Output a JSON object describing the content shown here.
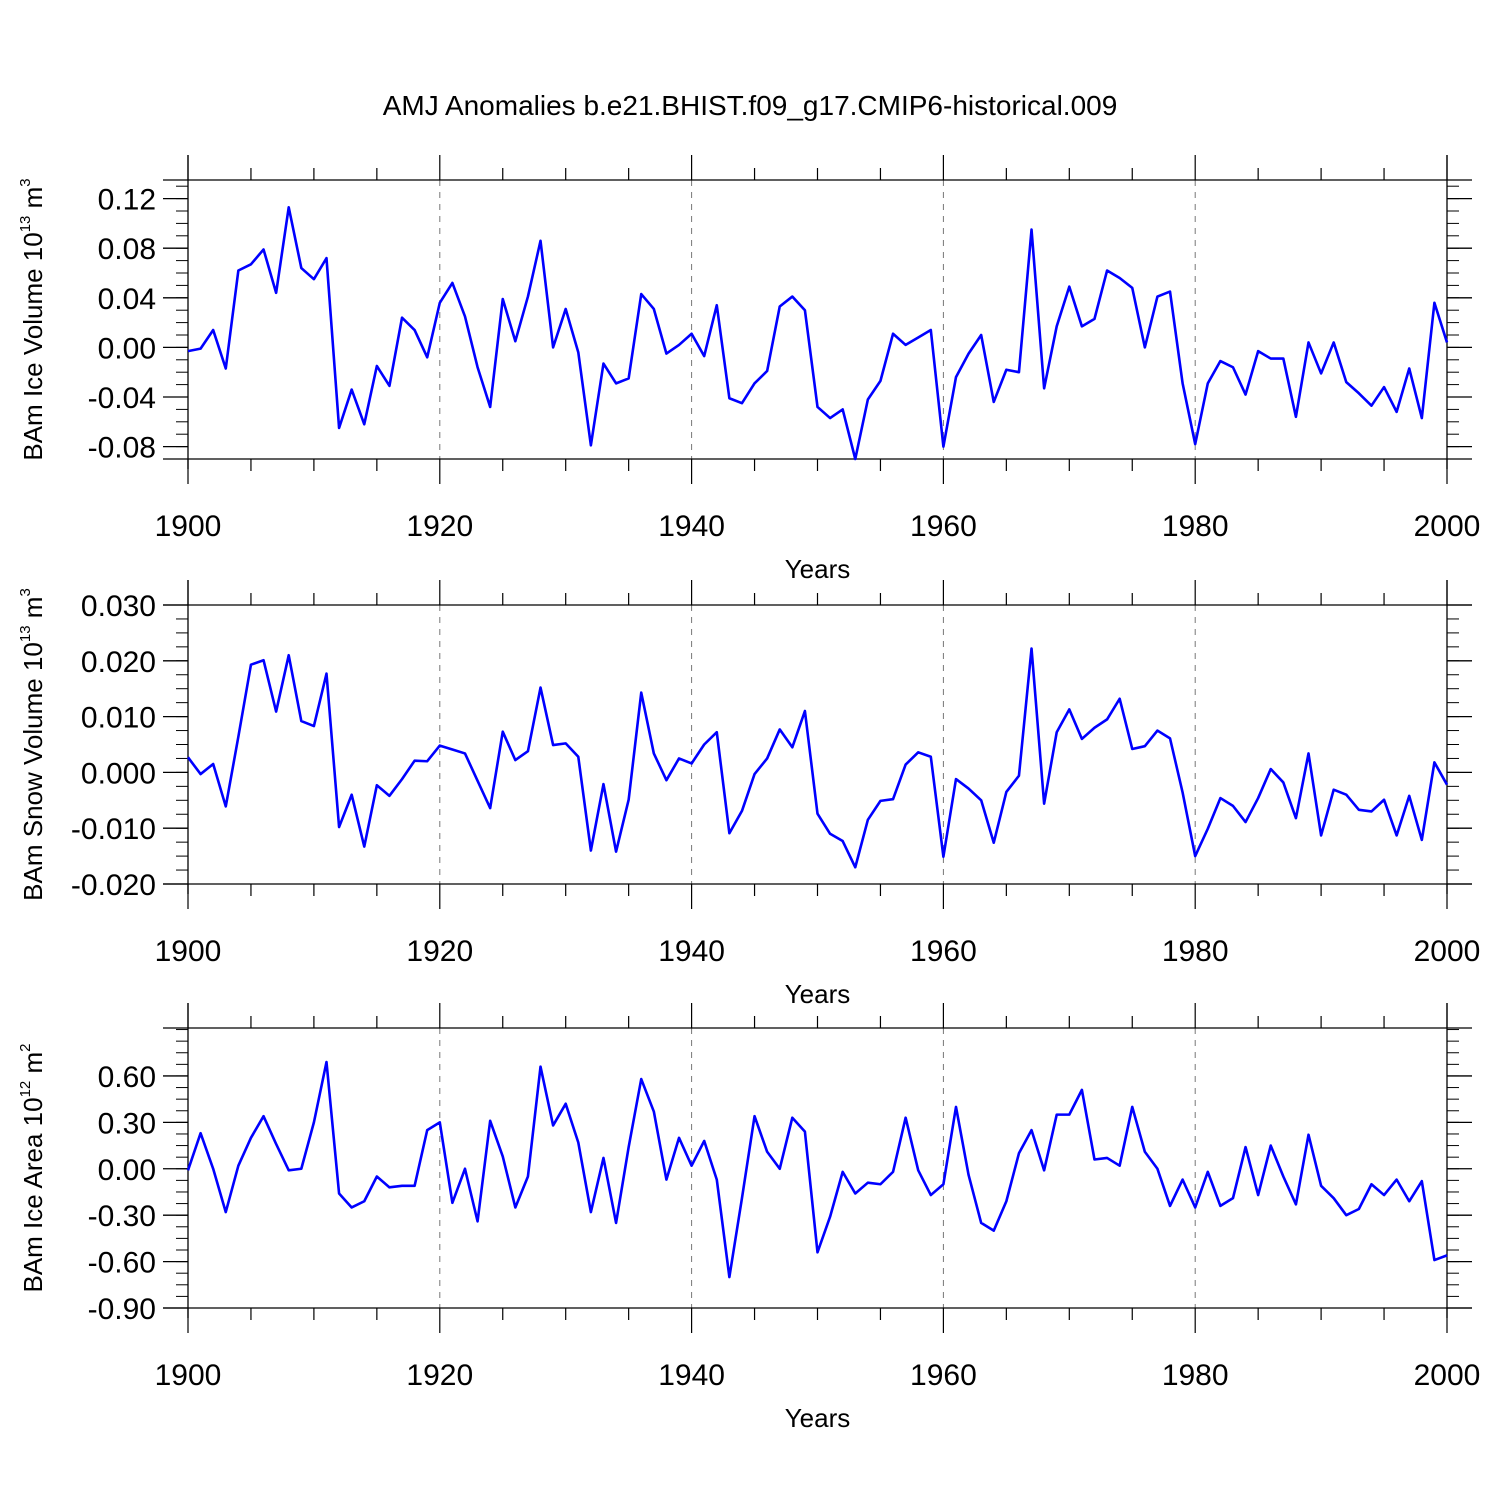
{
  "title": "AMJ Anomalies b.e21.BHIST.f09_g17.CMIP6-historical.009",
  "chart_data": [
    {
      "type": "line",
      "name": "ice-volume",
      "ylabel_main": "BAm Ice Volume 10",
      "ylabel_exp": "13",
      "ylabel_unit": " m",
      "ylabel_unit_exp": "3",
      "xlabel": "Years",
      "xlim": [
        1900,
        2000
      ],
      "ylim": [
        -0.09,
        0.135
      ],
      "x_ticks": [
        "1900",
        "1920",
        "1940",
        "1960",
        "1980",
        "2000"
      ],
      "y_ticks": [
        -0.08,
        -0.04,
        0.0,
        0.04,
        0.08,
        0.12
      ],
      "y_tick_labels": [
        "-0.08",
        "-0.04",
        "0.00",
        "0.04",
        "0.08",
        "0.12"
      ],
      "y_minor_step": 0.01,
      "color": "#0000ff",
      "x_start": 1900,
      "values": [
        -0.003,
        -0.001,
        0.014,
        -0.017,
        0.062,
        0.067,
        0.079,
        0.044,
        0.113,
        0.064,
        0.055,
        0.072,
        -0.065,
        -0.034,
        -0.062,
        -0.015,
        -0.031,
        0.024,
        0.014,
        -0.008,
        0.036,
        0.052,
        0.025,
        -0.016,
        -0.048,
        0.039,
        0.005,
        0.041,
        0.086,
        0.0,
        0.031,
        -0.004,
        -0.079,
        -0.013,
        -0.029,
        -0.025,
        0.043,
        0.031,
        -0.005,
        0.002,
        0.011,
        -0.007,
        0.034,
        -0.041,
        -0.045,
        -0.029,
        -0.019,
        0.033,
        0.041,
        0.03,
        -0.048,
        -0.057,
        -0.05,
        -0.09,
        -0.042,
        -0.027,
        0.011,
        0.002,
        0.008,
        0.014,
        -0.08,
        -0.024,
        -0.005,
        0.01,
        -0.044,
        -0.018,
        -0.02,
        0.095,
        -0.033,
        0.017,
        0.049,
        0.017,
        0.023,
        0.062,
        0.056,
        0.048,
        0.0,
        0.041,
        0.045,
        -0.029,
        -0.078,
        -0.029,
        -0.011,
        -0.016,
        -0.038,
        -0.003,
        -0.009,
        -0.009,
        -0.056,
        0.004,
        -0.021,
        0.004,
        -0.028,
        -0.037,
        -0.047,
        -0.032,
        -0.052,
        -0.017,
        -0.057,
        0.036,
        0.004
      ]
    },
    {
      "type": "line",
      "name": "snow-volume",
      "ylabel_main": "BAm Snow Volume 10",
      "ylabel_exp": "13",
      "ylabel_unit": " m",
      "ylabel_unit_exp": "3",
      "xlabel": "Years",
      "xlim": [
        1900,
        2000
      ],
      "ylim": [
        -0.02,
        0.03
      ],
      "x_ticks": [
        "1900",
        "1920",
        "1940",
        "1960",
        "1980",
        "2000"
      ],
      "y_ticks": [
        -0.02,
        -0.01,
        0.0,
        0.01,
        0.02,
        0.03
      ],
      "y_tick_labels": [
        "-0.020",
        "-0.010",
        "0.000",
        "0.010",
        "0.020",
        "0.030"
      ],
      "y_minor_step": 0.0025,
      "color": "#0000ff",
      "x_start": 1900,
      "values": [
        0.0027,
        -0.0003,
        0.0015,
        -0.0061,
        0.0064,
        0.0193,
        0.0201,
        0.0109,
        0.021,
        0.0092,
        0.0083,
        0.0177,
        -0.0098,
        -0.004,
        -0.0133,
        -0.0023,
        -0.0042,
        -0.0012,
        0.0021,
        0.002,
        0.0048,
        0.0041,
        0.0034,
        -0.0015,
        -0.0064,
        0.0073,
        0.0022,
        0.0038,
        0.0152,
        0.0049,
        0.0052,
        0.0028,
        -0.014,
        -0.0021,
        -0.0142,
        -0.0049,
        0.0143,
        0.0034,
        -0.0014,
        0.0025,
        0.0016,
        0.005,
        0.0072,
        -0.0109,
        -0.0069,
        -0.0003,
        0.0025,
        0.0077,
        0.0045,
        0.011,
        -0.0074,
        -0.011,
        -0.0123,
        -0.017,
        -0.0085,
        -0.0051,
        -0.0048,
        0.0014,
        0.0036,
        0.0028,
        -0.0151,
        -0.0012,
        -0.0029,
        -0.005,
        -0.0126,
        -0.0035,
        -0.0006,
        0.0222,
        -0.0056,
        0.0072,
        0.0113,
        0.006,
        0.008,
        0.0095,
        0.0132,
        0.0042,
        0.0047,
        0.0075,
        0.0061,
        -0.0036,
        -0.015,
        -0.0101,
        -0.0046,
        -0.006,
        -0.0089,
        -0.0046,
        0.0006,
        -0.0018,
        -0.0082,
        0.0034,
        -0.0113,
        -0.0031,
        -0.004,
        -0.0067,
        -0.007,
        -0.0049,
        -0.0113,
        -0.0042,
        -0.0121,
        0.0018,
        -0.0022
      ]
    },
    {
      "type": "line",
      "name": "ice-area",
      "ylabel_main": "BAm Ice Area 10",
      "ylabel_exp": "12",
      "ylabel_unit": " m",
      "ylabel_unit_exp": "2",
      "xlabel": "Years",
      "xlim": [
        1900,
        2000
      ],
      "ylim": [
        -0.9,
        0.91
      ],
      "x_ticks": [
        "1900",
        "1920",
        "1940",
        "1960",
        "1980",
        "2000"
      ],
      "y_ticks": [
        -0.9,
        -0.6,
        -0.3,
        0.0,
        0.3,
        0.6
      ],
      "y_tick_labels": [
        "-0.90",
        "-0.60",
        "-0.30",
        "0.00",
        "0.30",
        "0.60"
      ],
      "y_minor_step": 0.075,
      "color": "#0000ff",
      "x_start": 1900,
      "values": [
        -0.01,
        0.23,
        0.0,
        -0.28,
        0.02,
        0.2,
        0.34,
        0.16,
        -0.01,
        0.0,
        0.3,
        0.69,
        -0.16,
        -0.25,
        -0.21,
        -0.05,
        -0.12,
        -0.11,
        -0.11,
        0.25,
        0.3,
        -0.22,
        0.0,
        -0.34,
        0.31,
        0.08,
        -0.25,
        -0.05,
        0.66,
        0.28,
        0.42,
        0.17,
        -0.28,
        0.07,
        -0.35,
        0.14,
        0.58,
        0.37,
        -0.07,
        0.2,
        0.02,
        0.18,
        -0.07,
        -0.7,
        -0.19,
        0.34,
        0.11,
        0.0,
        0.33,
        0.24,
        -0.54,
        -0.31,
        -0.02,
        -0.16,
        -0.09,
        -0.1,
        -0.02,
        0.33,
        -0.01,
        -0.17,
        -0.1,
        0.4,
        -0.04,
        -0.35,
        -0.4,
        -0.21,
        0.1,
        0.25,
        -0.01,
        0.35,
        0.35,
        0.51,
        0.06,
        0.07,
        0.02,
        0.4,
        0.11,
        0.0,
        -0.24,
        -0.07,
        -0.25,
        -0.02,
        -0.24,
        -0.19,
        0.14,
        -0.17,
        0.15,
        -0.05,
        -0.23,
        0.22,
        -0.11,
        -0.19,
        -0.3,
        -0.26,
        -0.1,
        -0.17,
        -0.07,
        -0.21,
        -0.08,
        -0.59,
        -0.56
      ]
    }
  ]
}
